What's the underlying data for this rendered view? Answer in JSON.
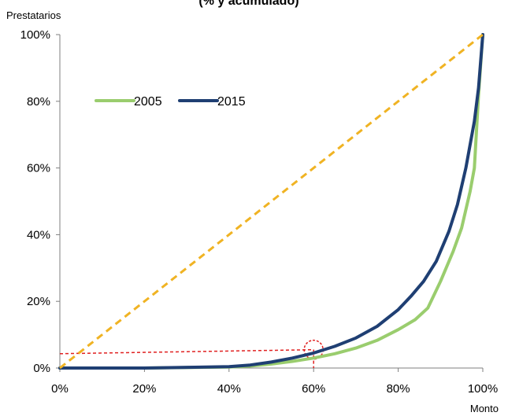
{
  "chart_data": {
    "type": "line",
    "title": "(% y acumulado)",
    "xlabel": "Monto",
    "ylabel": "Prestatarios",
    "xlim": [
      0,
      100
    ],
    "ylim": [
      0,
      100
    ],
    "x_ticks": [
      "0%",
      "20%",
      "40%",
      "60%",
      "80%",
      "100%"
    ],
    "y_ticks": [
      "0%",
      "20%",
      "40%",
      "60%",
      "80%",
      "100%"
    ],
    "legend_position": "upper-left",
    "grid": false,
    "series": [
      {
        "name": "2005",
        "color": "#9acd6e",
        "x": [
          0,
          20,
          40,
          45,
          50,
          55,
          60,
          65,
          70,
          75,
          80,
          84,
          87,
          90,
          93,
          95,
          97,
          98,
          99,
          100
        ],
        "y": [
          0,
          0,
          0.3,
          0.6,
          1.2,
          2,
          3,
          4.3,
          6,
          8.3,
          11.5,
          14.5,
          18,
          26,
          35,
          42,
          53,
          60,
          82,
          100
        ]
      },
      {
        "name": "2015",
        "color": "#1f3f73",
        "x": [
          0,
          20,
          40,
          45,
          50,
          55,
          60,
          65,
          70,
          75,
          80,
          83,
          86,
          89,
          92,
          94,
          96,
          98,
          99,
          100
        ],
        "y": [
          0,
          0,
          0.4,
          0.9,
          1.8,
          3,
          4.5,
          6.5,
          9,
          12.5,
          17.5,
          21.5,
          26,
          32,
          41,
          49,
          60,
          74,
          84,
          100
        ]
      },
      {
        "name": "",
        "color": "#f0b323",
        "dashed": true,
        "x": [
          0,
          100
        ],
        "y": [
          0,
          100
        ]
      }
    ],
    "annotations": [
      {
        "type": "reference-lines",
        "color": "#e02020",
        "x": 60,
        "y_at_axis": 4.3,
        "y_at_point": 5.5
      },
      {
        "type": "circle-marker",
        "color": "#e02020",
        "x": 60,
        "y": 5.5
      }
    ]
  }
}
